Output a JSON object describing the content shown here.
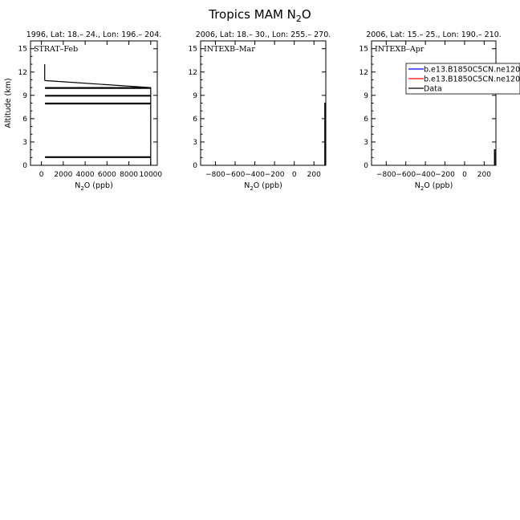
{
  "figure": {
    "title": "Tropics MAM N",
    "title_sub": "2",
    "title_tail": "O"
  },
  "chart_data": [
    {
      "type": "line",
      "title": "1996, Lat: 18.– 24., Lon: 196.– 204.",
      "label": "STRAT–Feb",
      "xlabel": "N2O (ppb)",
      "ylabel": "Altitude (km)",
      "xlim": [
        -1000,
        10600
      ],
      "ylim": [
        0,
        16
      ],
      "xticks": [
        0,
        2000,
        4000,
        6000,
        8000,
        10000
      ],
      "yticks": [
        0,
        3,
        6,
        9,
        12,
        15
      ],
      "series": [
        {
          "color": "#000000",
          "x": [
            300,
            300,
            330,
            10000,
            10000
          ],
          "y": [
            13.0,
            11.0,
            10.9,
            10.0,
            0.0
          ]
        },
        {
          "color": "#000000",
          "x": [
            330,
            10000
          ],
          "y": [
            10.0,
            10.0
          ]
        },
        {
          "color": "#000000",
          "x": [
            330,
            10000
          ],
          "y": [
            9.9,
            9.9
          ]
        },
        {
          "color": "#000000",
          "x": [
            330,
            10000
          ],
          "y": [
            9.0,
            9.0
          ]
        },
        {
          "color": "#000000",
          "x": [
            330,
            10000
          ],
          "y": [
            8.9,
            8.9
          ]
        },
        {
          "color": "#000000",
          "x": [
            330,
            10000
          ],
          "y": [
            8.0,
            8.0
          ]
        },
        {
          "color": "#000000",
          "x": [
            330,
            10000
          ],
          "y": [
            7.9,
            7.9
          ]
        },
        {
          "color": "#000000",
          "x": [
            330,
            10000
          ],
          "y": [
            1.1,
            1.1
          ]
        },
        {
          "color": "#000000",
          "x": [
            330,
            10000
          ],
          "y": [
            1.0,
            1.0
          ]
        }
      ]
    },
    {
      "type": "line",
      "title": "2006, Lat: 18.– 30., Lon: 255.– 270.",
      "label": "INTEXB–Mar",
      "xlabel": "N2O (ppb)",
      "ylabel": "",
      "xlim": [
        -950,
        320
      ],
      "ylim": [
        0,
        16
      ],
      "xticks": [
        -800,
        -600,
        -400,
        -200,
        0,
        200
      ],
      "yticks": [
        0,
        3,
        6,
        9,
        12,
        15
      ],
      "series": [
        {
          "color": "#000000",
          "x": [
            310,
            310,
            314,
            314
          ],
          "y": [
            0.0,
            8.0,
            8.0,
            0.0
          ]
        }
      ]
    },
    {
      "type": "line",
      "title": "2006, Lat: 15.– 25., Lon: 190.– 210.",
      "label": "INTEXB–Apr",
      "xlabel": "N2O (ppb)",
      "ylabel": "",
      "xlim": [
        -950,
        320
      ],
      "ylim": [
        0,
        16
      ],
      "xticks": [
        -800,
        -600,
        -400,
        -200,
        0,
        200
      ],
      "yticks": [
        0,
        3,
        6,
        9,
        12,
        15
      ],
      "series": [
        {
          "color": "#000000",
          "x": [
            305,
            305,
            310,
            310
          ],
          "y": [
            0.0,
            2.0,
            2.0,
            0.0
          ]
        }
      ],
      "legend": {
        "placement": "top-right",
        "entries": [
          {
            "name": "b.e13.B1850C5CN.ne120",
            "color": "#0000ff"
          },
          {
            "name": "b.e13.B1850C5CN.ne120",
            "color": "#ff0000"
          },
          {
            "name": "Data",
            "color": "#000000"
          }
        ]
      }
    }
  ]
}
